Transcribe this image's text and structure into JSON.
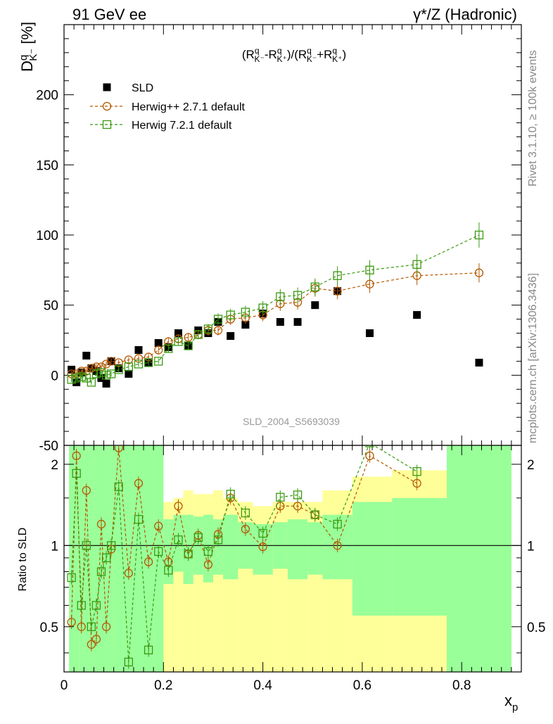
{
  "header": {
    "left": "91 GeV ee",
    "right": "γ*/Z (Hadronic)"
  },
  "side_labels": {
    "rivet": "Rivet 3.1.10, ≥ 100k events",
    "mcplots": "mcplots.cern.ch [arXiv:1306.3436]"
  },
  "watermark": "SLD_2004_S5693039",
  "colors": {
    "data": "#000000",
    "herwigpp": "#b35900",
    "herwig7": "#3a9a10",
    "band_inner": "#99ff99",
    "band_outer": "#ffff99"
  },
  "chart_data": [
    {
      "type": "scatter",
      "panel": "main",
      "title": "(R^q_K⁻-R^q_K⁺)/(R^q_K⁻+R^q_K⁺)",
      "title_plain": "(RqK--RqK+)/(RqK-+RqK+)",
      "ylabel": "Dq K⁻ [%]",
      "ylim": [
        -50,
        250
      ],
      "yticks": [
        -50,
        0,
        50,
        100,
        150,
        200
      ],
      "xlim": [
        0,
        0.92
      ],
      "legend_placement": "top-left",
      "series": [
        {
          "name": "SLD",
          "marker": "square-filled",
          "x": [
            0.015,
            0.025,
            0.035,
            0.045,
            0.055,
            0.065,
            0.075,
            0.085,
            0.095,
            0.11,
            0.13,
            0.15,
            0.17,
            0.19,
            0.21,
            0.23,
            0.25,
            0.27,
            0.29,
            0.31,
            0.335,
            0.365,
            0.4,
            0.435,
            0.47,
            0.505,
            0.55,
            0.615,
            0.71,
            0.835
          ],
          "y": [
            4,
            -5,
            2,
            14,
            5,
            3,
            -2,
            -6,
            10,
            5,
            1,
            18,
            9,
            23,
            20,
            30,
            21,
            32,
            30,
            38,
            28,
            36,
            44,
            38,
            38,
            50,
            60,
            30,
            43,
            9
          ]
        },
        {
          "name": "Herwig++ 2.7.1 default",
          "marker": "circle-open",
          "x": [
            0.015,
            0.025,
            0.035,
            0.045,
            0.055,
            0.065,
            0.075,
            0.085,
            0.095,
            0.11,
            0.13,
            0.15,
            0.17,
            0.19,
            0.21,
            0.23,
            0.25,
            0.27,
            0.29,
            0.31,
            0.335,
            0.365,
            0.4,
            0.435,
            0.47,
            0.505,
            0.55,
            0.615,
            0.71,
            0.835
          ],
          "y": [
            1,
            1,
            3,
            3,
            5,
            6,
            6,
            8,
            10,
            9,
            11,
            12,
            13,
            18,
            24,
            26,
            27,
            29,
            32,
            32,
            40,
            41,
            43,
            51,
            52,
            62,
            60,
            65,
            71,
            73
          ]
        },
        {
          "name": "Herwig 7.2.1 default",
          "marker": "square-open",
          "x": [
            0.015,
            0.025,
            0.035,
            0.045,
            0.055,
            0.065,
            0.075,
            0.085,
            0.095,
            0.11,
            0.13,
            0.15,
            0.17,
            0.19,
            0.21,
            0.23,
            0.25,
            0.27,
            0.29,
            0.31,
            0.335,
            0.365,
            0.4,
            0.435,
            0.47,
            0.505,
            0.55,
            0.615,
            0.71,
            0.835
          ],
          "y": [
            -3,
            -2,
            -1,
            -2,
            -5,
            1,
            2,
            0,
            1,
            4,
            6,
            8,
            9,
            10,
            19,
            24,
            21,
            29,
            33,
            40,
            43,
            45,
            48,
            56,
            57,
            63,
            71,
            75,
            79,
            100
          ]
        }
      ]
    },
    {
      "type": "line",
      "panel": "ratio",
      "ylabel": "Ratio to SLD",
      "xlabel": "xp",
      "ylim": [
        0.34,
        2.35
      ],
      "yscale": "log",
      "yticks": [
        0.5,
        1,
        2
      ],
      "xlim": [
        0,
        0.92
      ],
      "xticks": [
        0,
        0.2,
        0.4,
        0.6,
        0.8
      ],
      "reference_line": 1,
      "series": [
        {
          "name": "Herwig++ 2.7.1 default",
          "x": [
            0.015,
            0.025,
            0.035,
            0.045,
            0.055,
            0.065,
            0.075,
            0.085,
            0.095,
            0.11,
            0.13,
            0.15,
            0.17,
            0.19,
            0.21,
            0.23,
            0.25,
            0.27,
            0.29,
            0.31,
            0.335,
            0.365,
            0.4,
            0.435,
            0.47,
            0.505,
            0.55,
            0.615,
            0.71
          ],
          "y": [
            0.52,
            2.15,
            0.5,
            1.6,
            0.43,
            0.45,
            1.2,
            0.5,
            0.97,
            2.3,
            0.79,
            1.7,
            0.87,
            1.18,
            0.87,
            1.4,
            0.93,
            1.09,
            0.85,
            1.1,
            1.5,
            1.15,
            0.99,
            1.4,
            1.4,
            1.3,
            1.0,
            2.15,
            1.7
          ]
        },
        {
          "name": "Herwig 7.2.1 default",
          "x": [
            0.015,
            0.025,
            0.035,
            0.045,
            0.055,
            0.065,
            0.075,
            0.085,
            0.095,
            0.11,
            0.13,
            0.15,
            0.17,
            0.19,
            0.21,
            0.23,
            0.25,
            0.27,
            0.29,
            0.31,
            0.335,
            0.365,
            0.4,
            0.435,
            0.47,
            0.505,
            0.55,
            0.615,
            0.71
          ],
          "y": [
            0.76,
            1.85,
            0.6,
            1.0,
            0.5,
            0.6,
            0.8,
            0.9,
            1.0,
            1.65,
            0.37,
            1.25,
            0.41,
            0.95,
            0.81,
            1.05,
            0.93,
            1.07,
            0.95,
            1.05,
            1.55,
            1.32,
            1.11,
            1.51,
            1.54,
            1.3,
            1.2,
            2.4,
            1.88
          ]
        }
      ]
    }
  ]
}
